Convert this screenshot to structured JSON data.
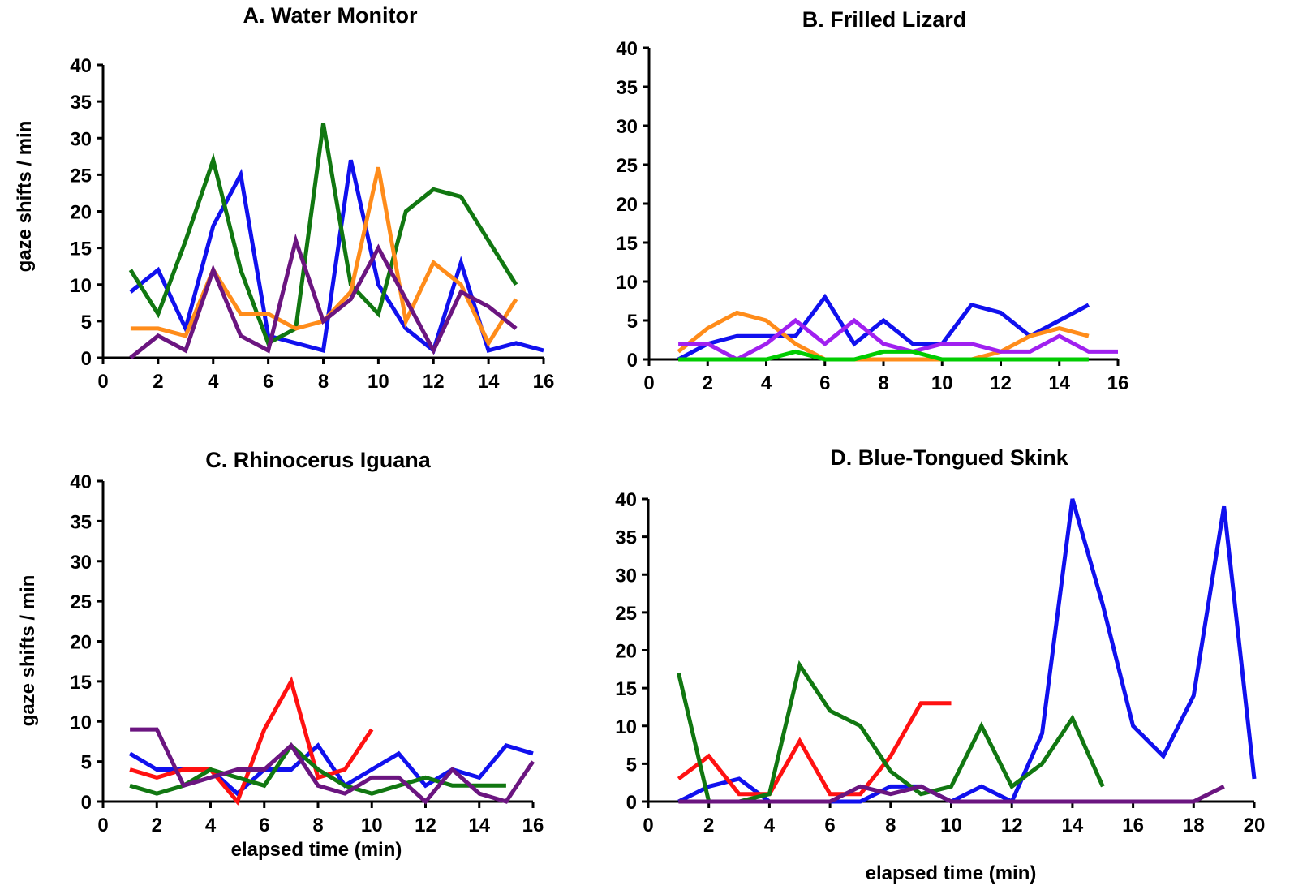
{
  "chart_data": [
    {
      "id": "A",
      "type": "line",
      "title": "A. Water Monitor",
      "xlabel": "",
      "ylabel": "gaze shifts / min",
      "xlim": [
        0,
        16
      ],
      "ylim": [
        0,
        40
      ],
      "xticks": [
        0,
        2,
        4,
        6,
        8,
        10,
        12,
        14,
        16
      ],
      "yticks": [
        0,
        5,
        10,
        15,
        20,
        25,
        30,
        35,
        40
      ],
      "series": [
        {
          "name": "blue",
          "color": "#1010ee",
          "x": [
            1,
            2,
            3,
            4,
            5,
            6,
            7,
            8,
            9,
            10,
            11,
            12,
            13,
            14,
            15,
            16
          ],
          "y": [
            9,
            12,
            4,
            18,
            25,
            3,
            2,
            1,
            27,
            10,
            4,
            1,
            13,
            1,
            2,
            1
          ]
        },
        {
          "name": "green",
          "color": "#117711",
          "x": [
            1,
            2,
            3,
            4,
            5,
            6,
            7,
            8,
            9,
            10,
            11,
            12,
            13,
            14,
            15
          ],
          "y": [
            12,
            6,
            16,
            27,
            12,
            2,
            4,
            32,
            10,
            6,
            20,
            23,
            22,
            16,
            10
          ]
        },
        {
          "name": "orange",
          "color": "#ff8c1a",
          "x": [
            1,
            2,
            3,
            4,
            5,
            6,
            7,
            8,
            9,
            10,
            11,
            12,
            13,
            14,
            15
          ],
          "y": [
            4,
            4,
            3,
            12,
            6,
            6,
            4,
            5,
            9,
            26,
            5,
            13,
            10,
            2,
            8
          ]
        },
        {
          "name": "purple",
          "color": "#6b1580",
          "x": [
            1,
            2,
            3,
            4,
            5,
            6,
            7,
            8,
            9,
            10,
            11,
            12,
            13,
            14,
            15
          ],
          "y": [
            0,
            3,
            1,
            12,
            3,
            1,
            16,
            5,
            8,
            15,
            8,
            1,
            9,
            7,
            4
          ]
        }
      ]
    },
    {
      "id": "B",
      "type": "line",
      "title": "B.  Frilled Lizard",
      "xlabel": "",
      "ylabel": "",
      "xlim": [
        0,
        16
      ],
      "ylim": [
        0,
        40
      ],
      "xticks": [
        0,
        2,
        4,
        6,
        8,
        10,
        12,
        14,
        16
      ],
      "yticks": [
        0,
        5,
        10,
        15,
        20,
        25,
        30,
        35,
        40
      ],
      "series": [
        {
          "name": "blue",
          "color": "#1010ee",
          "x": [
            1,
            2,
            3,
            4,
            5,
            6,
            7,
            8,
            9,
            10,
            11,
            12,
            13,
            14,
            15
          ],
          "y": [
            0,
            2,
            3,
            3,
            3,
            8,
            2,
            5,
            2,
            2,
            7,
            6,
            3,
            5,
            7
          ]
        },
        {
          "name": "orange",
          "color": "#ff8c1a",
          "x": [
            1,
            2,
            3,
            4,
            5,
            6,
            7,
            8,
            9,
            10,
            11,
            12,
            13,
            14,
            15
          ],
          "y": [
            1,
            4,
            6,
            5,
            2,
            0,
            0,
            0,
            0,
            0,
            0,
            1,
            3,
            4,
            3
          ]
        },
        {
          "name": "violet",
          "color": "#a020f0",
          "x": [
            1,
            2,
            3,
            4,
            5,
            6,
            7,
            8,
            9,
            10,
            11,
            12,
            13,
            14,
            15,
            16
          ],
          "y": [
            2,
            2,
            0,
            2,
            5,
            2,
            5,
            2,
            1,
            2,
            2,
            1,
            1,
            3,
            1,
            1
          ]
        },
        {
          "name": "green",
          "color": "#00cc00",
          "x": [
            1,
            2,
            3,
            4,
            5,
            6,
            7,
            8,
            9,
            10,
            11,
            12,
            13,
            14,
            15
          ],
          "y": [
            0,
            0,
            0,
            0,
            1,
            0,
            0,
            1,
            1,
            0,
            0,
            0,
            0,
            0,
            0
          ]
        }
      ]
    },
    {
      "id": "C",
      "type": "line",
      "title": "C.  Rhinocerus Iguana",
      "xlabel": "elapsed time (min)",
      "ylabel": "gaze shifts / min",
      "xlim": [
        0,
        16
      ],
      "ylim": [
        0,
        40
      ],
      "xticks": [
        0,
        2,
        4,
        6,
        8,
        10,
        12,
        14,
        16
      ],
      "yticks": [
        0,
        5,
        10,
        15,
        20,
        25,
        30,
        35,
        40
      ],
      "series": [
        {
          "name": "blue",
          "color": "#1010ee",
          "x": [
            1,
            2,
            3,
            4,
            5,
            6,
            7,
            8,
            9,
            10,
            11,
            12,
            13,
            14,
            15,
            16
          ],
          "y": [
            6,
            4,
            4,
            4,
            1,
            4,
            4,
            7,
            2,
            4,
            6,
            2,
            4,
            3,
            7,
            6
          ]
        },
        {
          "name": "red",
          "color": "#ff1111",
          "x": [
            1,
            2,
            3,
            4,
            5,
            6,
            7,
            8,
            9,
            10
          ],
          "y": [
            4,
            3,
            4,
            4,
            0,
            9,
            15,
            3,
            4,
            9
          ]
        },
        {
          "name": "green",
          "color": "#117711",
          "x": [
            1,
            2,
            3,
            4,
            5,
            6,
            7,
            8,
            9,
            10,
            11,
            12,
            13,
            14,
            15
          ],
          "y": [
            2,
            1,
            2,
            4,
            3,
            2,
            7,
            4,
            2,
            1,
            2,
            3,
            2,
            2,
            2
          ]
        },
        {
          "name": "purple",
          "color": "#6b1580",
          "x": [
            1,
            2,
            3,
            4,
            5,
            6,
            7,
            8,
            9,
            10,
            11,
            12,
            13,
            14,
            15,
            16
          ],
          "y": [
            9,
            9,
            2,
            3,
            4,
            4,
            7,
            2,
            1,
            3,
            3,
            0,
            4,
            1,
            0,
            5
          ]
        }
      ]
    },
    {
      "id": "D",
      "type": "line",
      "title": "D.  Blue-Tongued Skink",
      "xlabel": "elapsed time (min)",
      "ylabel": "",
      "xlim": [
        0,
        20
      ],
      "ylim": [
        0,
        40
      ],
      "xticks": [
        0,
        2,
        4,
        6,
        8,
        10,
        12,
        14,
        16,
        18,
        20
      ],
      "yticks": [
        0,
        5,
        10,
        15,
        20,
        25,
        30,
        35,
        40
      ],
      "series": [
        {
          "name": "blue",
          "color": "#1010ee",
          "x": [
            1,
            2,
            3,
            4,
            5,
            6,
            7,
            8,
            9,
            10,
            11,
            12,
            13,
            14,
            15,
            16,
            17,
            18,
            19,
            20
          ],
          "y": [
            0,
            2,
            3,
            0,
            0,
            0,
            0,
            2,
            2,
            0,
            2,
            0,
            9,
            40,
            26,
            10,
            6,
            14,
            39,
            3
          ]
        },
        {
          "name": "red",
          "color": "#ff1111",
          "x": [
            1,
            2,
            3,
            4,
            5,
            6,
            7,
            8,
            9,
            10
          ],
          "y": [
            3,
            6,
            1,
            1,
            8,
            1,
            1,
            6,
            13,
            13
          ]
        },
        {
          "name": "green",
          "color": "#117711",
          "x": [
            1,
            2,
            3,
            4,
            5,
            6,
            7,
            8,
            9,
            10,
            11,
            12,
            13,
            14,
            15
          ],
          "y": [
            17,
            0,
            0,
            1,
            18,
            12,
            10,
            4,
            1,
            2,
            10,
            2,
            5,
            11,
            2
          ]
        },
        {
          "name": "purple",
          "color": "#6b1580",
          "x": [
            1,
            2,
            3,
            4,
            5,
            6,
            7,
            8,
            9,
            10,
            11,
            12,
            13,
            14,
            15,
            16,
            17,
            18,
            19
          ],
          "y": [
            0,
            0,
            0,
            0,
            0,
            0,
            2,
            1,
            2,
            0,
            0,
            0,
            0,
            0,
            0,
            0,
            0,
            0,
            2
          ]
        }
      ]
    }
  ]
}
